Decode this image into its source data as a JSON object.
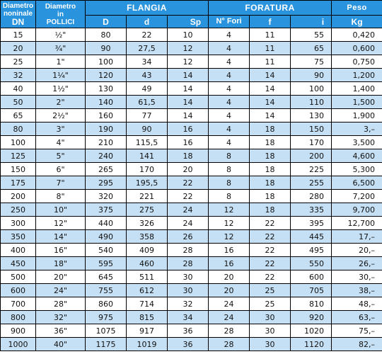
{
  "headers": {
    "dn_line1": "Diametro",
    "dn_line2": "noninale",
    "dn_line3": "DN",
    "in_line1": "Diametro",
    "in_line2": "in",
    "in_line3": "POLLICI",
    "flangia": "FLANGIA",
    "foratura": "FORATURA",
    "peso": "Peso",
    "D": "D",
    "d": "d",
    "Sp": "Sp",
    "nfori": "N° Fori",
    "f": "f",
    "i": "i",
    "kg": "Kg"
  },
  "rows": [
    [
      "15",
      "½\"",
      "80",
      "22",
      "10",
      "4",
      "11",
      "55",
      "0,420"
    ],
    [
      "20",
      "¾\"",
      "90",
      "27,5",
      "12",
      "4",
      "11",
      "65",
      "0,600"
    ],
    [
      "25",
      "1\"",
      "100",
      "34",
      "12",
      "4",
      "11",
      "75",
      "0,750"
    ],
    [
      "32",
      "1¼\"",
      "120",
      "43",
      "14",
      "4",
      "14",
      "90",
      "1,200"
    ],
    [
      "40",
      "1½\"",
      "130",
      "49",
      "14",
      "4",
      "14",
      "100",
      "1,400"
    ],
    [
      "50",
      "2\"",
      "140",
      "61,5",
      "14",
      "4",
      "14",
      "110",
      "1,500"
    ],
    [
      "65",
      "2½\"",
      "160",
      "77",
      "14",
      "4",
      "14",
      "130",
      "1,900"
    ],
    [
      "80",
      "3\"",
      "190",
      "90",
      "16",
      "4",
      "18",
      "150",
      "3,–"
    ],
    [
      "100",
      "4\"",
      "210",
      "115,5",
      "16",
      "4",
      "18",
      "170",
      "3,500"
    ],
    [
      "125",
      "5\"",
      "240",
      "141",
      "18",
      "8",
      "18",
      "200",
      "4,600"
    ],
    [
      "150",
      "6\"",
      "265",
      "170",
      "20",
      "8",
      "18",
      "225",
      "5,300"
    ],
    [
      "175",
      "7\"",
      "295",
      "195,5",
      "22",
      "8",
      "18",
      "255",
      "6,500"
    ],
    [
      "200",
      "8\"",
      "320",
      "221",
      "22",
      "8",
      "18",
      "280",
      "7,200"
    ],
    [
      "250",
      "10\"",
      "375",
      "275",
      "24",
      "12",
      "18",
      "335",
      "9,700"
    ],
    [
      "300",
      "12\"",
      "440",
      "326",
      "24",
      "12",
      "22",
      "395",
      "12,700"
    ],
    [
      "350",
      "14\"",
      "490",
      "358",
      "26",
      "12",
      "22",
      "445",
      "17,–"
    ],
    [
      "400",
      "16\"",
      "540",
      "409",
      "28",
      "16",
      "22",
      "495",
      "20,–"
    ],
    [
      "450",
      "18\"",
      "595",
      "460",
      "28",
      "16",
      "22",
      "550",
      "26,–"
    ],
    [
      "500",
      "20\"",
      "645",
      "511",
      "30",
      "20",
      "22",
      "600",
      "30,–"
    ],
    [
      "600",
      "24\"",
      "755",
      "612",
      "30",
      "20",
      "25",
      "705",
      "38,–"
    ],
    [
      "700",
      "28\"",
      "860",
      "714",
      "32",
      "24",
      "25",
      "810",
      "48,–"
    ],
    [
      "800",
      "32\"",
      "975",
      "815",
      "34",
      "24",
      "30",
      "920",
      "63,–"
    ],
    [
      "900",
      "36\"",
      "1075",
      "917",
      "36",
      "28",
      "30",
      "1020",
      "75,–"
    ],
    [
      "1000",
      "40\"",
      "1175",
      "1019",
      "36",
      "28",
      "30",
      "1120",
      "82,–"
    ]
  ]
}
